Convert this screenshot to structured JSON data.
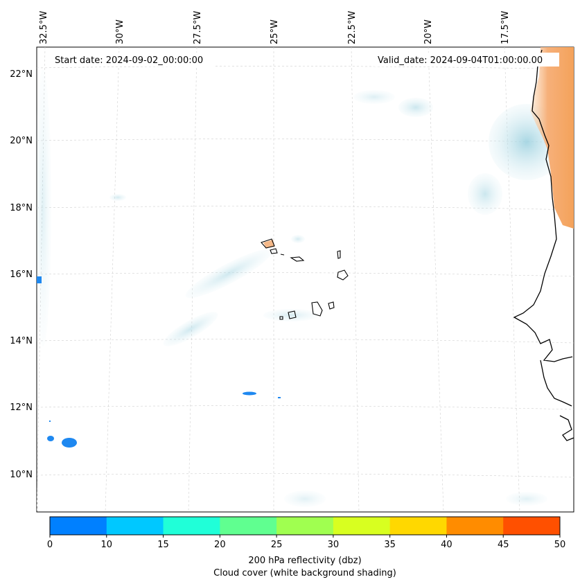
{
  "map": {
    "start_date": "Start date: 2024-09-02_00:00:00",
    "valid_date": "Valid_date: 2024-09-04T01:00:00.00",
    "lon_labels": [
      "32.5°W",
      "30°W",
      "27.5°W",
      "25°W",
      "22.5°W",
      "20°W",
      "17.5°W"
    ],
    "lat_labels": [
      "22°N",
      "20°N",
      "18°N",
      "16°N",
      "14°N",
      "12°N",
      "10°N"
    ],
    "colorbar": {
      "ticks": [
        "0",
        "10",
        "15",
        "20",
        "25",
        "30",
        "35",
        "40",
        "45",
        "50"
      ],
      "colors": [
        "#0080ff",
        "#00c8ff",
        "#20ffd8",
        "#60ff90",
        "#a0ff50",
        "#d8ff20",
        "#ffd800",
        "#ff8c00",
        "#ff5000"
      ],
      "label_line1": "200 hPa reflectivity (dbz)",
      "label_line2": "Cloud cover (white background shading)"
    },
    "colors": {
      "land_orange": "#f5a460",
      "cloud_blue": "#a8d8e4",
      "reflectivity_blue": "#1e88f0"
    }
  }
}
